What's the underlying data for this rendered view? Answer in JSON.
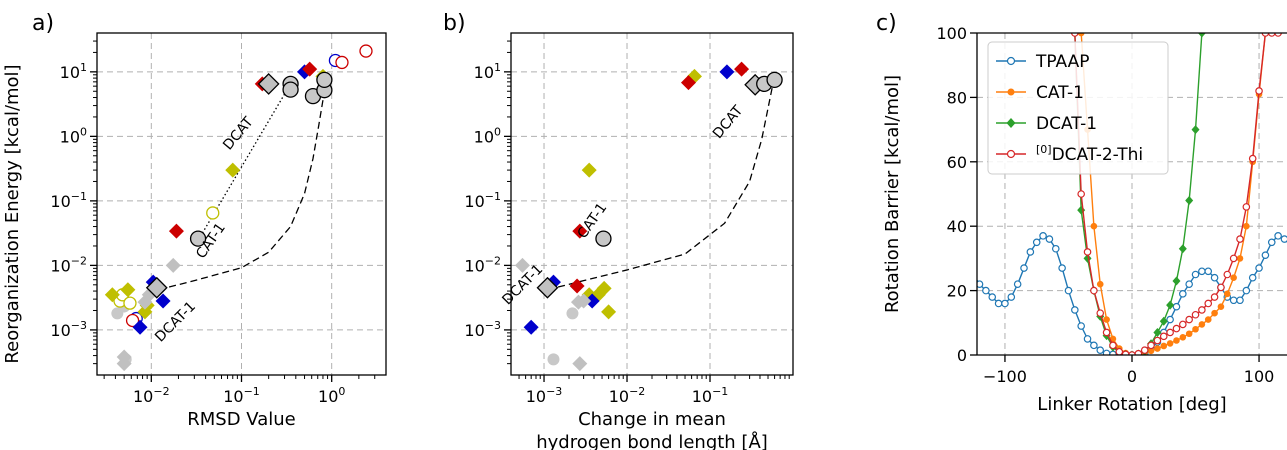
{
  "chart_data": [
    {
      "panel": "a)",
      "type": "scatter",
      "xscale": "log",
      "yscale": "log",
      "xlim": [
        0.0025,
        4
      ],
      "ylim": [
        0.0002,
        40
      ],
      "xlabel": "RMSD Value",
      "ylabel": "Reorganization Energy [kcal/mol]",
      "xticks": [
        {
          "value": 0.01,
          "base": "10",
          "exp": "−2"
        },
        {
          "value": 0.1,
          "base": "10",
          "exp": "−1"
        },
        {
          "value": 1,
          "base": "10",
          "exp": "0"
        }
      ],
      "yticks": [
        {
          "value": 0.001,
          "base": "10",
          "exp": "−3"
        },
        {
          "value": 0.01,
          "base": "10",
          "exp": "−2"
        },
        {
          "value": 0.1,
          "base": "10",
          "exp": "−1"
        },
        {
          "value": 1,
          "base": "10",
          "exp": "0"
        },
        {
          "value": 10,
          "base": "10",
          "exp": "1"
        }
      ],
      "grid": true,
      "diamonds": [
        {
          "x": 0.0037,
          "y": 0.0035,
          "color": "#bfbf00"
        },
        {
          "x": 0.0055,
          "y": 0.0042,
          "color": "#bfbf00"
        },
        {
          "x": 0.0085,
          "y": 0.0019,
          "color": "#bfbf00"
        },
        {
          "x": 0.009,
          "y": 0.0024,
          "color": "#bfbf00"
        },
        {
          "x": 0.08,
          "y": 0.3,
          "color": "#bfbf00"
        },
        {
          "x": 0.8,
          "y": 8.5,
          "color": "#bfbf00"
        },
        {
          "x": 0.0075,
          "y": 0.0011,
          "color": "#0000cc"
        },
        {
          "x": 0.0105,
          "y": 0.0055,
          "color": "#0000cc"
        },
        {
          "x": 0.0135,
          "y": 0.0028,
          "color": "#0000cc"
        },
        {
          "x": 0.5,
          "y": 10,
          "color": "#0000cc"
        },
        {
          "x": 0.019,
          "y": 0.034,
          "color": "#cc0000"
        },
        {
          "x": 0.17,
          "y": 6.5,
          "color": "#cc0000"
        },
        {
          "x": 0.57,
          "y": 11,
          "color": "#cc0000"
        },
        {
          "x": 0.0085,
          "y": 0.0027,
          "color": "#c0c0c0"
        },
        {
          "x": 0.0095,
          "y": 0.0035,
          "color": "#c0c0c0"
        },
        {
          "x": 0.0125,
          "y": 0.0045,
          "color": "#c0c0c0"
        },
        {
          "x": 0.0175,
          "y": 0.01,
          "color": "#c0c0c0"
        },
        {
          "x": 0.005,
          "y": 0.00038,
          "color": "#c0c0c0"
        },
        {
          "x": 0.005,
          "y": 0.0003,
          "color": "#c0c0c0"
        }
      ],
      "gray_dots": [
        {
          "x": 0.0042,
          "y": 0.0018
        },
        {
          "x": 0.005,
          "y": 0.0023
        },
        {
          "x": 0.0052,
          "y": 0.00035
        }
      ],
      "open_circles": [
        {
          "x": 0.0045,
          "y": 0.0028,
          "color": "#bfbf00"
        },
        {
          "x": 0.0048,
          "y": 0.0035,
          "color": "#bfbf00"
        },
        {
          "x": 0.0058,
          "y": 0.0026,
          "color": "#bfbf00"
        },
        {
          "x": 0.0068,
          "y": 0.0015,
          "color": "#0000cc"
        },
        {
          "x": 0.0062,
          "y": 0.0014,
          "color": "#cc0000"
        },
        {
          "x": 0.048,
          "y": 0.065,
          "color": "#bfbf00"
        },
        {
          "x": 1.1,
          "y": 15,
          "color": "#0000cc"
        },
        {
          "x": 1.3,
          "y": 14,
          "color": "#cc0000"
        },
        {
          "x": 2.4,
          "y": 21,
          "color": "#cc0000"
        }
      ],
      "marked_circles": [
        {
          "x": 0.033,
          "y": 0.026
        },
        {
          "x": 0.35,
          "y": 6.5
        },
        {
          "x": 0.35,
          "y": 5.3
        },
        {
          "x": 0.62,
          "y": 4.2
        },
        {
          "x": 0.83,
          "y": 5.2
        },
        {
          "x": 0.83,
          "y": 7.5
        }
      ],
      "marked_diamonds": [
        {
          "x": 0.0115,
          "y": 0.0045
        },
        {
          "x": 0.2,
          "y": 6.5
        }
      ],
      "dotted_line": {
        "x1": 0.035,
        "y1": 0.028,
        "x2": 0.35,
        "y2": 6.5
      },
      "dashed_curve": [
        [
          0.012,
          0.0042
        ],
        [
          0.03,
          0.0058
        ],
        [
          0.1,
          0.0092
        ],
        [
          0.2,
          0.016
        ],
        [
          0.35,
          0.04
        ],
        [
          0.5,
          0.13
        ],
        [
          0.62,
          0.45
        ],
        [
          0.72,
          1.5
        ],
        [
          0.82,
          4.5
        ]
      ],
      "annotations": [
        {
          "text": "CAT-1",
          "x": 0.05,
          "y": 0.022,
          "rotate": -55
        },
        {
          "text": "DCAT-1",
          "x": 0.02,
          "y": 0.0012,
          "rotate": -45
        },
        {
          "text": "DCAT",
          "x": 0.1,
          "y": 1.0,
          "rotate": -50
        }
      ]
    },
    {
      "panel": "b)",
      "type": "scatter",
      "xscale": "log",
      "yscale": "log",
      "xlim": [
        0.0004,
        1
      ],
      "ylim": [
        0.0002,
        40
      ],
      "xlabel": "Change in mean hydrogen bond length [Å]",
      "xlabel_lines": [
        "Change in mean",
        "hydrogen bond length [Å]"
      ],
      "xticks": [
        {
          "value": 0.001,
          "base": "10",
          "exp": "−3"
        },
        {
          "value": 0.01,
          "base": "10",
          "exp": "−2"
        },
        {
          "value": 0.1,
          "base": "10",
          "exp": "−1"
        }
      ],
      "yticks": [
        {
          "value": 0.001,
          "base": "10",
          "exp": "−3"
        },
        {
          "value": 0.01,
          "base": "10",
          "exp": "−2"
        },
        {
          "value": 0.1,
          "base": "10",
          "exp": "−1"
        },
        {
          "value": 1,
          "base": "10",
          "exp": "0"
        },
        {
          "value": 10,
          "base": "10",
          "exp": "1"
        }
      ],
      "grid": true,
      "diamonds": [
        {
          "x": 0.0035,
          "y": 0.3,
          "color": "#bfbf00"
        },
        {
          "x": 0.0035,
          "y": 0.0035,
          "color": "#bfbf00"
        },
        {
          "x": 0.0045,
          "y": 0.0035,
          "color": "#bfbf00"
        },
        {
          "x": 0.0053,
          "y": 0.0044,
          "color": "#bfbf00"
        },
        {
          "x": 0.006,
          "y": 0.0019,
          "color": "#bfbf00"
        },
        {
          "x": 0.065,
          "y": 8.5,
          "color": "#bfbf00"
        },
        {
          "x": 0.0007,
          "y": 0.0011,
          "color": "#0000cc"
        },
        {
          "x": 0.0013,
          "y": 0.0055,
          "color": "#0000cc"
        },
        {
          "x": 0.0038,
          "y": 0.0028,
          "color": "#0000cc"
        },
        {
          "x": 0.16,
          "y": 10,
          "color": "#0000cc"
        },
        {
          "x": 0.0027,
          "y": 0.034,
          "color": "#cc0000"
        },
        {
          "x": 0.0025,
          "y": 0.0048,
          "color": "#cc0000"
        },
        {
          "x": 0.055,
          "y": 6.8,
          "color": "#cc0000"
        },
        {
          "x": 0.24,
          "y": 11,
          "color": "#cc0000"
        },
        {
          "x": 0.00055,
          "y": 0.01,
          "color": "#c0c0c0"
        },
        {
          "x": 0.0026,
          "y": 0.0027,
          "color": "#c0c0c0"
        },
        {
          "x": 0.003,
          "y": 0.0028,
          "color": "#c0c0c0"
        },
        {
          "x": 0.0027,
          "y": 0.0003,
          "color": "#c0c0c0"
        }
      ],
      "gray_dots": [
        {
          "x": 0.0022,
          "y": 0.0018
        },
        {
          "x": 0.0013,
          "y": 0.00035
        }
      ],
      "open_circles": [],
      "marked_circles": [
        {
          "x": 0.0052,
          "y": 0.026
        },
        {
          "x": 0.45,
          "y": 6.5
        },
        {
          "x": 0.6,
          "y": 7.5
        }
      ],
      "marked_diamonds": [
        {
          "x": 0.0011,
          "y": 0.0045
        },
        {
          "x": 0.35,
          "y": 6.3
        }
      ],
      "dotted_line": null,
      "dashed_curve": [
        [
          0.0011,
          0.0042
        ],
        [
          0.003,
          0.0058
        ],
        [
          0.01,
          0.0085
        ],
        [
          0.05,
          0.015
        ],
        [
          0.15,
          0.045
        ],
        [
          0.3,
          0.2
        ],
        [
          0.42,
          0.9
        ],
        [
          0.52,
          3.5
        ],
        [
          0.58,
          7
        ]
      ],
      "annotations": [
        {
          "text": "CAT-1",
          "x": 0.0042,
          "y": 0.045,
          "rotate": -55
        },
        {
          "text": "DCAT-1",
          "x": 0.0006,
          "y": 0.0045,
          "rotate": -45
        },
        {
          "text": "DCAT",
          "x": 0.18,
          "y": 1.5,
          "rotate": -50
        }
      ]
    },
    {
      "panel": "c)",
      "type": "line",
      "xlim": [
        -122,
        122
      ],
      "ylim": [
        0,
        100
      ],
      "xlabel": "Linker Rotation [deg]",
      "ylabel": "Rotation Barrier [kcal/mol]",
      "xticks": [
        {
          "value": -100,
          "label": "−100"
        },
        {
          "value": 0,
          "label": "0"
        },
        {
          "value": 100,
          "label": "100"
        }
      ],
      "yticks": [
        0,
        20,
        40,
        60,
        80,
        100
      ],
      "grid": true,
      "legend_position": "top-left",
      "series": [
        {
          "name": "TPAAP",
          "color": "#1f77b4",
          "marker": "open-circle",
          "x": [
            -125,
            -120,
            -115,
            -110,
            -105,
            -100,
            -95,
            -90,
            -85,
            -80,
            -75,
            -70,
            -65,
            -60,
            -55,
            -50,
            -45,
            -40,
            -35,
            -30,
            -25,
            -20,
            -15,
            -10,
            -5,
            0,
            5,
            10,
            15,
            20,
            25,
            30,
            35,
            40,
            45,
            50,
            55,
            60,
            65,
            70,
            75,
            80,
            85,
            90,
            95,
            100,
            105,
            110,
            115,
            120,
            125
          ],
          "y": [
            25,
            22,
            20,
            18,
            16,
            16,
            18,
            22,
            27,
            32,
            35,
            37,
            36,
            33,
            27,
            20,
            14,
            9,
            5,
            3,
            1.5,
            0.5,
            0.2,
            0.1,
            0.05,
            0,
            0.1,
            0.5,
            2,
            4,
            7,
            11,
            15,
            19,
            22,
            25,
            26,
            26,
            24,
            21,
            18,
            17,
            17,
            20,
            24,
            27,
            31,
            35,
            37,
            36,
            34
          ]
        },
        {
          "name": "CAT-1",
          "color": "#ff7f0e",
          "marker": "filled-circle",
          "x": [
            -40,
            -35,
            -30,
            -25,
            -20,
            -15,
            -10,
            -5,
            0,
            5,
            10,
            15,
            20,
            25,
            30,
            35,
            40,
            45,
            50,
            55,
            60,
            65,
            70,
            75,
            80,
            85,
            90,
            95,
            100,
            105,
            110,
            115
          ],
          "y": [
            100,
            70,
            40,
            22,
            11,
            5,
            2,
            0.6,
            0,
            0.3,
            0.8,
            1.3,
            2,
            2.8,
            3.6,
            4.5,
            5.5,
            6.6,
            8,
            9.5,
            11,
            13,
            15,
            19,
            24,
            30,
            40,
            60,
            81,
            100,
            100,
            100
          ]
        },
        {
          "name": "DCAT-1",
          "color": "#2ca02c",
          "marker": "filled-diamond",
          "x": [
            -45,
            -40,
            -35,
            -30,
            -25,
            -20,
            -15,
            -10,
            -5,
            0,
            5,
            10,
            15,
            20,
            25,
            30,
            35,
            40,
            45,
            50,
            55
          ],
          "y": [
            100,
            45,
            30,
            20,
            12,
            6,
            2.5,
            0.8,
            0.2,
            0,
            0.3,
            1.2,
            3.5,
            7,
            10.5,
            15.5,
            23,
            33,
            48,
            70,
            100
          ]
        },
        {
          "name": "[0]DCAT-2-Thi",
          "color": "#d62728",
          "marker": "open-circle",
          "x": [
            -45,
            -40,
            -35,
            -30,
            -25,
            -20,
            -15,
            -10,
            -5,
            0,
            5,
            10,
            15,
            20,
            25,
            30,
            35,
            40,
            45,
            50,
            55,
            60,
            65,
            70,
            75,
            80,
            85,
            90,
            95,
            100,
            105,
            110,
            115
          ],
          "y": [
            100,
            50,
            32,
            20,
            13,
            7,
            3,
            1,
            0.2,
            0,
            0.4,
            1.5,
            3,
            4.5,
            5.8,
            7,
            8.2,
            9.5,
            11,
            12.5,
            14,
            16,
            18,
            21,
            25,
            30,
            36,
            46,
            61,
            82,
            100,
            100,
            100
          ]
        }
      ]
    }
  ]
}
